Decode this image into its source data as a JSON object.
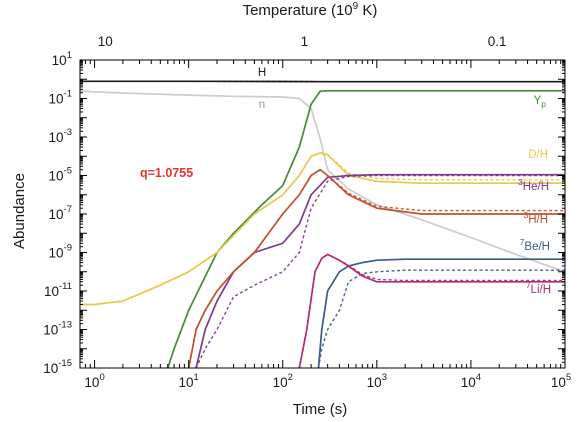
{
  "chart_data": {
    "type": "line",
    "xlabel": "Time (s)",
    "ylabel": "Abundance",
    "top_axis_label": "Temperature  (10",
    "top_axis_label_sup": "9",
    "top_axis_label_end": " K)",
    "x_scale": "log",
    "y_scale": "log",
    "xlim": [
      0.7,
      100000
    ],
    "ylim": [
      1e-15,
      10
    ],
    "x_ticks": [
      {
        "v": 1,
        "base": "10",
        "exp": "0"
      },
      {
        "v": 10,
        "base": "10",
        "exp": "1"
      },
      {
        "v": 100,
        "base": "10",
        "exp": "2"
      },
      {
        "v": 1000,
        "base": "10",
        "exp": "3"
      },
      {
        "v": 10000,
        "base": "10",
        "exp": "4"
      },
      {
        "v": 100000,
        "base": "10",
        "exp": "5"
      }
    ],
    "y_ticks": [
      {
        "v": 10,
        "base": "10",
        "exp": "1"
      },
      {
        "v": 0.1,
        "base": "10",
        "exp": "-1"
      },
      {
        "v": 0.001,
        "base": "10",
        "exp": "-3"
      },
      {
        "v": 1e-05,
        "base": "10",
        "exp": "-5"
      },
      {
        "v": 1e-07,
        "base": "10",
        "exp": "-7"
      },
      {
        "v": 1e-09,
        "base": "10",
        "exp": "-9"
      },
      {
        "v": 1e-11,
        "base": "10",
        "exp": "-11"
      },
      {
        "v": 1e-13,
        "base": "10",
        "exp": "-13"
      },
      {
        "v": 1e-15,
        "base": "10",
        "exp": "-15"
      }
    ],
    "top_ticks": [
      {
        "t": 1.3,
        "label": "10"
      },
      {
        "t": 170,
        "label": "1"
      },
      {
        "t": 19000,
        "label": "0.1"
      }
    ],
    "parameter_label": "q=1.0755",
    "parameter_color": "#e8342a",
    "grid": false,
    "legend": "none",
    "series": [
      {
        "name": "H",
        "label_pre": "",
        "label_sup": "",
        "label_main": "H",
        "label_sub": "",
        "color": "#1a1a1a",
        "x": [
          0.7,
          10,
          100,
          300,
          1000,
          10000,
          100000
        ],
        "y": [
          0.78,
          0.78,
          0.76,
          0.75,
          0.75,
          0.75,
          0.75
        ],
        "dashed_y": [
          0.78,
          0.78,
          0.76,
          0.75,
          0.75,
          0.75,
          0.75
        ]
      },
      {
        "name": "n",
        "label_pre": "",
        "label_sup": "",
        "label_main": "n",
        "label_sub": "",
        "color": "#cccccc",
        "x": [
          0.7,
          1,
          3,
          10,
          30,
          100,
          150,
          200,
          250,
          300,
          500,
          1000,
          3000,
          10000,
          30000,
          100000
        ],
        "y": [
          0.25,
          0.22,
          0.18,
          0.15,
          0.13,
          0.12,
          0.1,
          0.03,
          0.0008,
          2e-05,
          2e-06,
          3e-07,
          5e-08,
          6e-09,
          8e-10,
          1e-10
        ],
        "dashed_y": [
          0.25,
          0.22,
          0.18,
          0.15,
          0.13,
          0.12,
          0.1,
          0.03,
          0.0008,
          2e-05,
          2e-06,
          3e-07,
          5e-08,
          6e-09,
          8e-10,
          1e-10
        ]
      },
      {
        "name": "Yp",
        "label_pre": "",
        "label_sup": "",
        "label_main": "Y",
        "label_sub": "p",
        "color": "#4a8a3c",
        "x": [
          6,
          7,
          10,
          20,
          30,
          60,
          100,
          150,
          200,
          250,
          300,
          1000,
          100000
        ],
        "y": [
          1e-15,
          1e-14,
          1e-12,
          1e-09,
          1e-08,
          3e-07,
          3e-06,
          0.0003,
          0.05,
          0.24,
          0.25,
          0.25,
          0.25
        ],
        "dashed_y": [
          1e-15,
          1e-14,
          1e-12,
          1e-09,
          1e-08,
          3e-07,
          3e-06,
          0.0003,
          0.05,
          0.24,
          0.25,
          0.25,
          0.25
        ]
      },
      {
        "name": "D/H",
        "label_pre": "",
        "label_sup": "",
        "label_main": "D/H",
        "label_sub": "",
        "color": "#e8c84a",
        "x": [
          0.7,
          1,
          2,
          5,
          10,
          20,
          50,
          100,
          150,
          200,
          250,
          300,
          400,
          500,
          1000,
          3000,
          100000
        ],
        "y": [
          2e-12,
          2e-12,
          3e-12,
          2e-11,
          1e-10,
          1e-09,
          1e-07,
          1e-06,
          1e-05,
          0.0001,
          0.00015,
          0.00012,
          3e-05,
          1e-05,
          5e-06,
          4e-06,
          4e-06
        ],
        "dashed_y": [
          2e-12,
          2e-12,
          3e-12,
          2e-11,
          1e-10,
          1e-09,
          1e-07,
          1e-06,
          1e-05,
          0.0001,
          0.00015,
          0.00012,
          3.5e-05,
          1.3e-05,
          7e-06,
          6e-06,
          6e-06
        ]
      },
      {
        "name": "3He/H",
        "label_pre": "",
        "label_sup": "3",
        "label_main": "He/H",
        "label_sub": "",
        "color": "#7d3a8c",
        "x": [
          12,
          15,
          20,
          30,
          50,
          100,
          150,
          200,
          300,
          500,
          1000,
          100000
        ],
        "y": [
          1e-15,
          1e-13,
          3e-12,
          1e-10,
          1e-09,
          3e-09,
          3e-08,
          1e-06,
          8e-06,
          1e-05,
          1.1e-05,
          1.1e-05
        ],
        "dashed_y": [
          1e-15,
          1e-14,
          1e-13,
          5e-12,
          2e-11,
          1e-10,
          1e-09,
          2e-07,
          5e-06,
          9e-06,
          1e-05,
          1e-05
        ]
      },
      {
        "name": "3H/H",
        "label_pre": "",
        "label_sup": "3",
        "label_main": "H/H",
        "label_sub": "",
        "color": "#c0512e",
        "x": [
          10,
          12,
          15,
          20,
          30,
          50,
          100,
          150,
          200,
          250,
          300,
          500,
          1000,
          3000,
          100000
        ],
        "y": [
          1e-15,
          1e-13,
          1e-12,
          1e-11,
          1e-10,
          1e-09,
          1e-07,
          1e-06,
          1e-05,
          2e-05,
          1e-05,
          1e-06,
          2e-07,
          1e-07,
          1e-07
        ],
        "dashed_y": [
          1e-15,
          1e-13,
          1e-12,
          1e-11,
          1e-10,
          1e-09,
          1e-07,
          1e-06,
          1e-05,
          2e-05,
          1e-05,
          1.2e-06,
          2.5e-07,
          1.5e-07,
          1.5e-07
        ]
      },
      {
        "name": "7Be/H",
        "label_pre": "",
        "label_sup": "7",
        "label_main": "Be/H",
        "label_sub": "",
        "color": "#3a5a8c",
        "x": [
          240,
          260,
          300,
          400,
          500,
          700,
          1000,
          2000,
          5000,
          100000
        ],
        "y": [
          1e-15,
          1e-13,
          1e-11,
          1e-10,
          2e-10,
          3e-10,
          4e-10,
          4.5e-10,
          4.5e-10,
          4.5e-10
        ],
        "dashed_y": [
          1e-15,
          1e-14,
          1e-13,
          1e-12,
          3e-11,
          8e-11,
          1e-10,
          1.2e-10,
          1.2e-10,
          1.2e-10
        ]
      },
      {
        "name": "7Li/H",
        "label_pre": "",
        "label_sup": "7",
        "label_main": "Li/H",
        "label_sub": "",
        "color": "#b02a7a",
        "x": [
          150,
          180,
          220,
          260,
          300,
          400,
          500,
          700,
          1000,
          2000,
          100000
        ],
        "y": [
          1e-15,
          1e-13,
          1e-10,
          5e-10,
          8e-10,
          4e-10,
          2e-10,
          6e-11,
          3e-11,
          3e-11,
          3e-11
        ],
        "dashed_y": [
          1e-15,
          1e-13,
          1e-10,
          5e-10,
          8e-10,
          4e-10,
          2.2e-10,
          7e-11,
          4e-11,
          3.5e-11,
          3.5e-11
        ]
      }
    ]
  }
}
